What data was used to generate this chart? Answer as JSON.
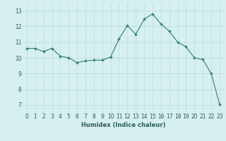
{
  "x": [
    0,
    1,
    2,
    3,
    4,
    5,
    6,
    7,
    8,
    9,
    10,
    11,
    12,
    13,
    14,
    15,
    16,
    17,
    18,
    19,
    20,
    21,
    22,
    23
  ],
  "y": [
    10.6,
    10.6,
    10.4,
    10.6,
    10.1,
    10.0,
    9.7,
    9.8,
    9.85,
    9.85,
    10.05,
    11.2,
    12.05,
    11.5,
    12.45,
    12.8,
    12.15,
    11.7,
    11.0,
    10.7,
    10.0,
    9.9,
    9.0,
    7.05
  ],
  "line_color": "#2e7d6e",
  "marker": "+",
  "marker_size": 3,
  "marker_linewidth": 1.0,
  "line_width": 0.8,
  "bg_color": "#d6f0ef",
  "grid_color": "#b8dbd9",
  "grid_linewidth": 0.5,
  "xlabel": "Humidex (Indice chaleur)",
  "xlabel_fontsize": 6.0,
  "xlabel_color": "#2e5f56",
  "tick_fontsize": 5.5,
  "tick_color": "#2e5f56",
  "ylim": [
    6.5,
    13.5
  ],
  "yticks": [
    7,
    8,
    9,
    10,
    11,
    12,
    13
  ],
  "xlim": [
    -0.5,
    23.5
  ],
  "xticks": [
    0,
    1,
    2,
    3,
    4,
    5,
    6,
    7,
    8,
    9,
    10,
    11,
    12,
    13,
    14,
    15,
    16,
    17,
    18,
    19,
    20,
    21,
    22,
    23
  ]
}
